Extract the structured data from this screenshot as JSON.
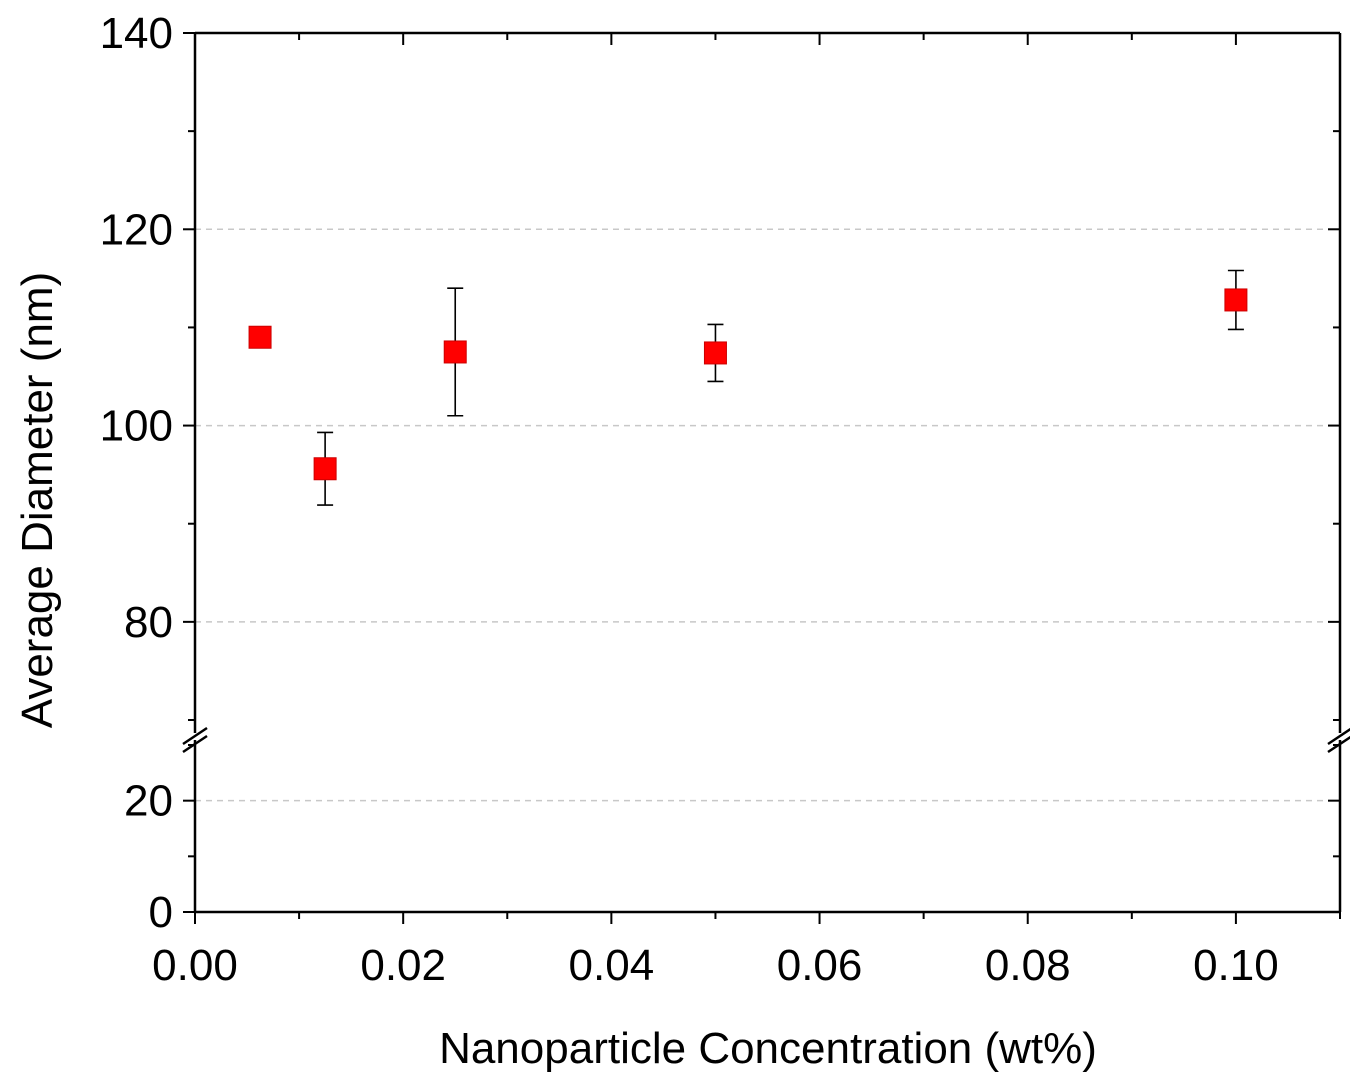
{
  "chart_data": {
    "type": "scatter",
    "title": "",
    "xlabel": "Nanoparticle Concentration (wt%)",
    "ylabel": "Average Diameter (nm)",
    "xlim": [
      0.0,
      0.11
    ],
    "ylim_lower": [
      0,
      30
    ],
    "ylim_upper": [
      70,
      140
    ],
    "y_axis_break": [
      30,
      70
    ],
    "x_ticks": [
      "0.00",
      "0.02",
      "0.04",
      "0.06",
      "0.08",
      "0.10"
    ],
    "y_ticks": [
      "0",
      "20",
      "80",
      "100",
      "120",
      "140"
    ],
    "grid": "horizontal dashed at 20, 80, 100, 120",
    "legend": "none",
    "marker": "filled square",
    "marker_color": "#ff0000",
    "series": [
      {
        "x": [
          0.00625,
          0.0125,
          0.025,
          0.05,
          0.1
        ],
        "y": [
          109.0,
          95.6,
          107.5,
          107.4,
          112.8
        ],
        "yerr": [
          0.8,
          3.7,
          6.5,
          2.9,
          3.0
        ]
      }
    ]
  }
}
